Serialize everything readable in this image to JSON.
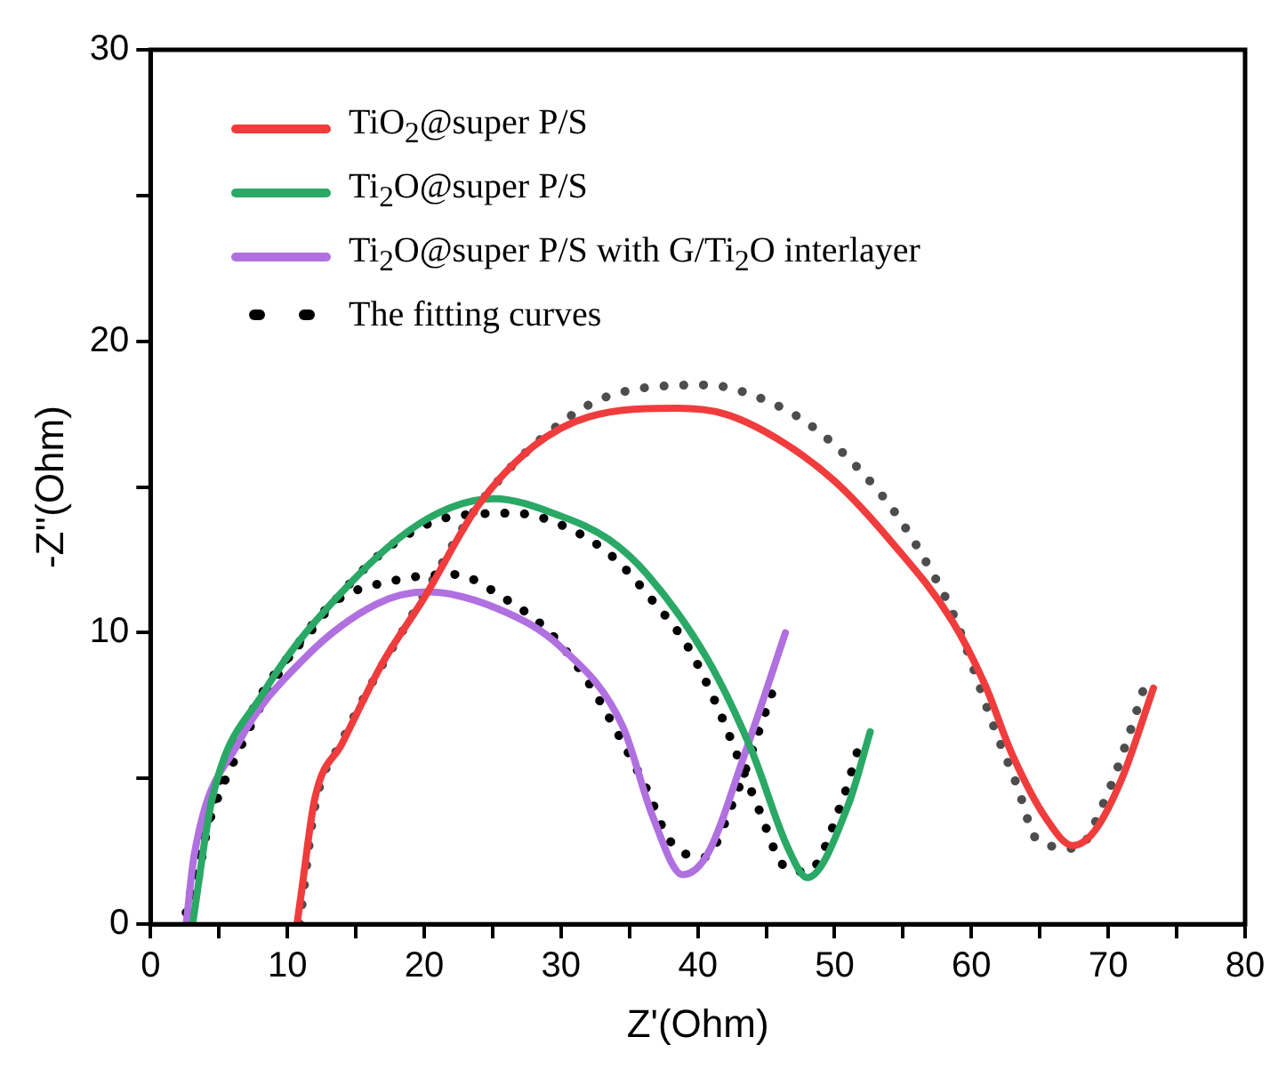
{
  "chart_data": {
    "type": "line",
    "xlabel": "Z'(Ohm)",
    "ylabel": "-Z''(Ohm)",
    "xlim": [
      0,
      80
    ],
    "ylim": [
      0,
      30
    ],
    "xticks": [
      0,
      {
        "value": 5,
        "label": null
      },
      10,
      {
        "value": 15,
        "label": null
      },
      20,
      {
        "value": 25,
        "label": null
      },
      30,
      {
        "value": 35,
        "label": null
      },
      40,
      {
        "value": 45,
        "label": null
      },
      50,
      {
        "value": 55,
        "label": null
      },
      60,
      {
        "value": 65,
        "label": null
      },
      70,
      {
        "value": 75,
        "label": null
      },
      80
    ],
    "yticks": [
      0,
      {
        "value": 5,
        "label": null
      },
      10,
      {
        "value": 15,
        "label": null
      },
      20,
      {
        "value": 25,
        "label": null
      },
      30
    ],
    "grid": false,
    "legend": "top left",
    "marker": "none",
    "series": [
      {
        "name": "TiO$_{2}$@super P/S",
        "line_style": "solid",
        "color": "#f03c3c",
        "x": [
          10.7,
          11,
          12,
          14,
          17,
          20,
          24,
          28,
          32,
          38.5,
          42,
          46,
          50,
          54,
          58.6,
          61,
          63,
          65.5,
          67.4,
          69,
          71,
          73.3
        ],
        "values": [
          0,
          1,
          4.3,
          6.2,
          9,
          11.2,
          14.4,
          16.4,
          17.4,
          17.7,
          17.5,
          16.6,
          15.2,
          13.2,
          10.4,
          8.2,
          5.8,
          3.6,
          2.7,
          3.2,
          5,
          8.1
        ]
      },
      {
        "name": "Ti$_{2}$O@super P/S",
        "line_style": "solid",
        "color": "#2aa866",
        "x": [
          3.1,
          4.5,
          8.2,
          14.4,
          20.2,
          25.1,
          30,
          33.5,
          36.3,
          40.7,
          43.9,
          46.6,
          48,
          51,
          52.6
        ],
        "values": [
          0.1,
          4.3,
          7.9,
          11.6,
          13.9,
          14.6,
          14,
          13.2,
          12,
          9.1,
          6,
          2.6,
          1.6,
          4.1,
          6.6
        ]
      },
      {
        "name": "Ti$_{2}$O@super P/S with G/Ti$_{2}$O interlayer",
        "line_style": "solid",
        "color": "#b070e0",
        "x": [
          2.6,
          3.2,
          6.4,
          11.2,
          16.6,
          20.2,
          25.5,
          30,
          34.5,
          36.7,
          38.9,
          40.7,
          43.4,
          46.4
        ],
        "values": [
          0,
          2.4,
          6.2,
          9.1,
          11,
          11.4,
          10.8,
          9.5,
          6.8,
          3.7,
          1.7,
          2.4,
          5.8,
          10
        ]
      },
      {
        "name": "The fitting curves",
        "line_style": "dotted",
        "color": "#000000",
        "x": [
          3,
          4.5,
          8,
          11.8,
          14.4,
          17.9,
          22.2,
          26.6,
          30.5,
          33.8,
          36.7,
          39.3,
          41.3,
          44.5,
          46.3,
          48,
          50.6,
          51.9
        ],
        "values": [
          0.3,
          4,
          7.8,
          10.1,
          11.6,
          13.1,
          14,
          14.1,
          13.6,
          12.6,
          11.1,
          9.5,
          7.6,
          3.9,
          2,
          1.8,
          4.3,
          6.3
        ]
      },
      {
        "line_style": "dotted",
        "color": "#000000",
        "x": [
          2.6,
          3.5,
          4.8,
          6.4,
          8.4,
          10.6,
          13.3,
          17.9,
          22.2,
          25.8,
          29.2,
          32,
          34.2,
          36.3,
          37.9,
          40.5,
          42.5,
          45.4
        ],
        "values": [
          0.4,
          2.3,
          4.2,
          5.9,
          7.8,
          9.5,
          11,
          11.8,
          12,
          11.2,
          10,
          8.3,
          6.5,
          4.6,
          2.9,
          2.3,
          4.1,
          7.9
        ]
      },
      {
        "line_style": "dotted",
        "color": "#4d4d4d",
        "x": [
          10.9,
          12,
          14,
          20,
          24,
          30,
          34,
          40.7,
          44.3,
          48,
          51.4,
          54.3,
          56.6,
          58.7,
          61.7,
          63.3,
          64.8,
          67.7,
          69.7,
          71.3,
          72.6
        ],
        "values": [
          0,
          4,
          6.3,
          11.3,
          14.4,
          17.2,
          18.2,
          18.5,
          18.1,
          17.2,
          15.8,
          14.2,
          12.5,
          10.6,
          6.7,
          4.8,
          2.9,
          2.6,
          4.2,
          6.2,
          8.1
        ]
      }
    ]
  }
}
